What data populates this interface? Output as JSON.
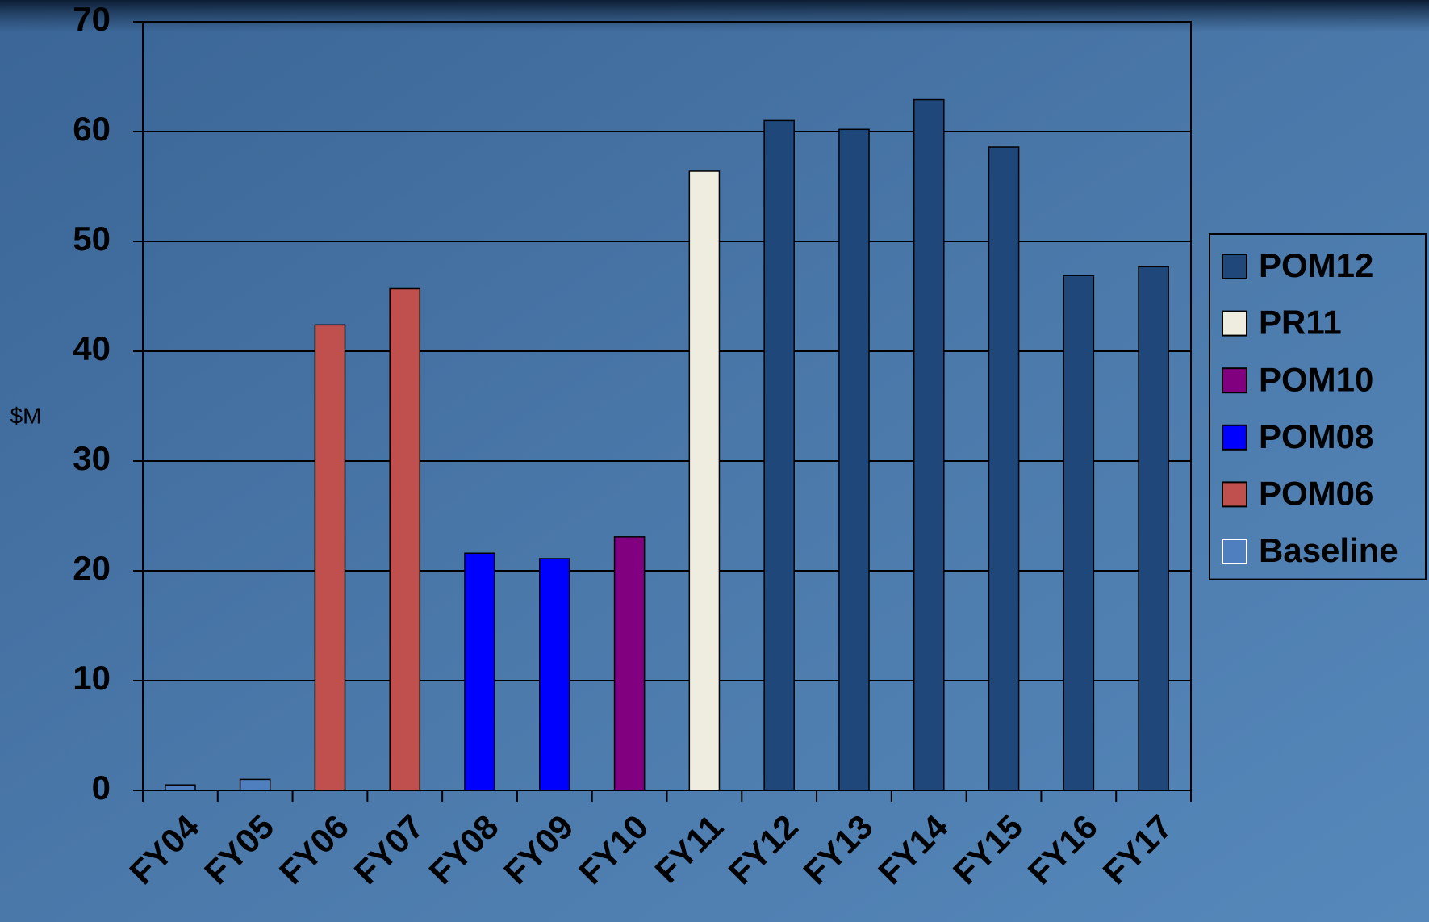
{
  "chart_data": {
    "type": "bar",
    "y_label": "$M",
    "categories": [
      "FY04",
      "FY05",
      "FY06",
      "FY07",
      "FY08",
      "FY09",
      "FY10",
      "FY11",
      "FY12",
      "FY13",
      "FY14",
      "FY15",
      "FY16",
      "FY17"
    ],
    "series": [
      {
        "name": "POM12",
        "color": "#1f477a",
        "values": [
          null,
          null,
          null,
          null,
          null,
          null,
          null,
          null,
          61.0,
          60.2,
          62.9,
          58.6,
          46.9,
          47.7
        ]
      },
      {
        "name": "PR11",
        "color": "#efece0",
        "values": [
          null,
          null,
          null,
          null,
          null,
          null,
          null,
          56.4,
          null,
          null,
          null,
          null,
          null,
          null
        ]
      },
      {
        "name": "POM10",
        "color": "#800080",
        "values": [
          null,
          null,
          null,
          null,
          null,
          null,
          23.1,
          null,
          null,
          null,
          null,
          null,
          null,
          null
        ]
      },
      {
        "name": "POM08",
        "color": "#0000ff",
        "values": [
          null,
          null,
          null,
          null,
          21.6,
          21.1,
          null,
          null,
          null,
          null,
          null,
          null,
          null,
          null
        ]
      },
      {
        "name": "POM06",
        "color": "#c0504d",
        "values": [
          null,
          null,
          42.4,
          45.7,
          null,
          null,
          null,
          null,
          null,
          null,
          null,
          null,
          null,
          null
        ]
      },
      {
        "name": "Baseline",
        "color": "#4f7fbf",
        "values": [
          0.5,
          1.0,
          null,
          null,
          null,
          null,
          null,
          null,
          null,
          null,
          null,
          null,
          null,
          null
        ]
      }
    ],
    "ylim": [
      0,
      70
    ],
    "yticks": [
      0,
      10,
      20,
      30,
      40,
      50,
      60,
      70
    ],
    "grid": true,
    "legend": "right"
  }
}
